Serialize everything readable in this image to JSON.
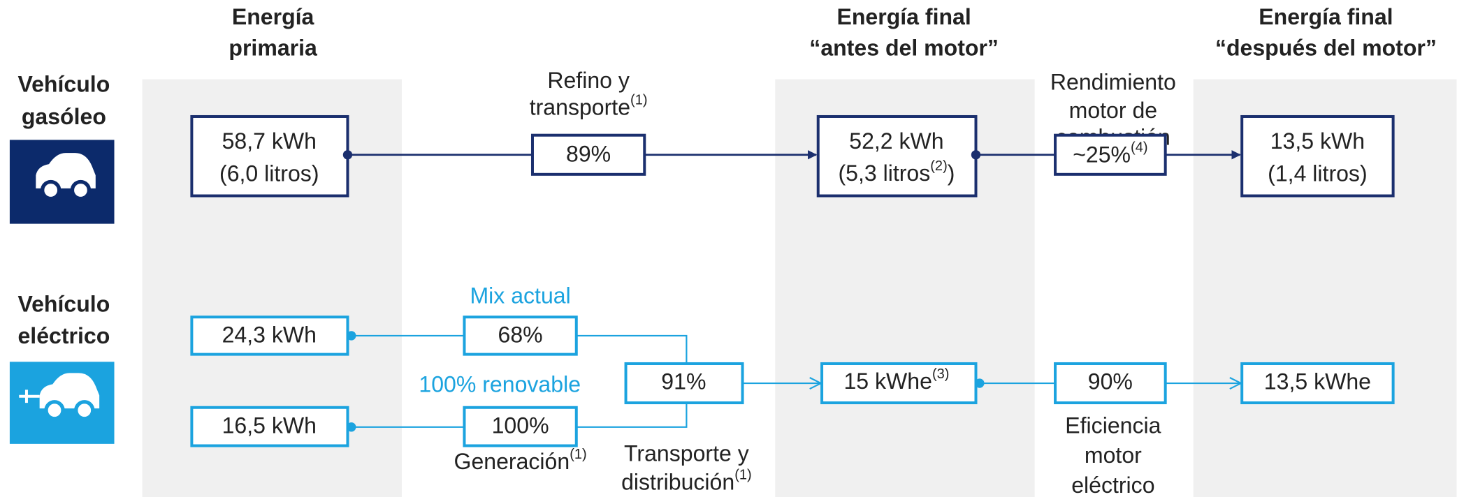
{
  "columns": [
    {
      "line1": "Energía",
      "line2": "primaria"
    },
    {
      "line1": "Energía final",
      "line2": "“antes del motor”"
    },
    {
      "line1": "Energía final",
      "line2": "“después del motor”"
    }
  ],
  "diesel": {
    "label1": "Vehículo",
    "label2": "gasóleo",
    "primary": {
      "line1": "58,7 kWh",
      "line2": "(6,0 litros)"
    },
    "step1": {
      "line1": "Refino y",
      "line2": "transporte",
      "note": "(1)",
      "value": "89%"
    },
    "final_before": {
      "line1": "52,2 kWh",
      "line2": "(5,3 litros",
      "note": "(2)",
      "close": ")"
    },
    "step2": {
      "line1": "Rendimiento",
      "line2": "motor de",
      "line3": "combustión",
      "value": "~25%",
      "note": "(4)"
    },
    "final_after": {
      "line1": "13,5 kWh",
      "line2": "(1,4 litros)"
    }
  },
  "electric": {
    "label1": "Vehículo",
    "label2": "eléctrico",
    "primary_mix": "24,3 kWh",
    "primary_renewable": "16,5 kWh",
    "mix": {
      "label": "Mix actual",
      "value": "68%"
    },
    "renewable": {
      "label": "100% renovable",
      "value": "100%"
    },
    "generation": {
      "label": "Generación",
      "note": "(1)"
    },
    "transport": {
      "line1": "Transporte y",
      "line2": "distribución",
      "note": "(1)",
      "value": "91%"
    },
    "final_before": {
      "value": "15 kWhe",
      "note": "(3)"
    },
    "efficiency": {
      "line1": "Eficiencia",
      "line2": "motor",
      "line3": "eléctrico",
      "value": "90%"
    },
    "final_after": "13,5 kWhe"
  }
}
